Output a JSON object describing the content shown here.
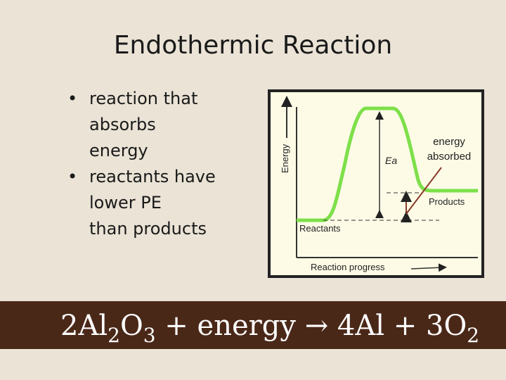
{
  "title": "Endothermic Reaction",
  "bullets": [
    {
      "lines": [
        "reaction that",
        "absorbs",
        "energy"
      ]
    },
    {
      "lines": [
        "reactants have",
        "lower PE",
        "than products"
      ]
    }
  ],
  "bullet_glyph": "•",
  "diagram": {
    "y_axis_label": "Energy",
    "x_axis_label": "Reaction progress",
    "ea_label": "Ea",
    "energy_absorbed_label": [
      "energy",
      "absorbed"
    ],
    "reactants_label": "Reactants",
    "products_label": "Products",
    "curve_color": "#7de04a",
    "plot_background": "#fdfbe6"
  },
  "equation": {
    "parts": [
      "2Al",
      "2",
      "O",
      "3",
      " + energy ",
      "→",
      " 4Al + 3O",
      "2"
    ]
  }
}
